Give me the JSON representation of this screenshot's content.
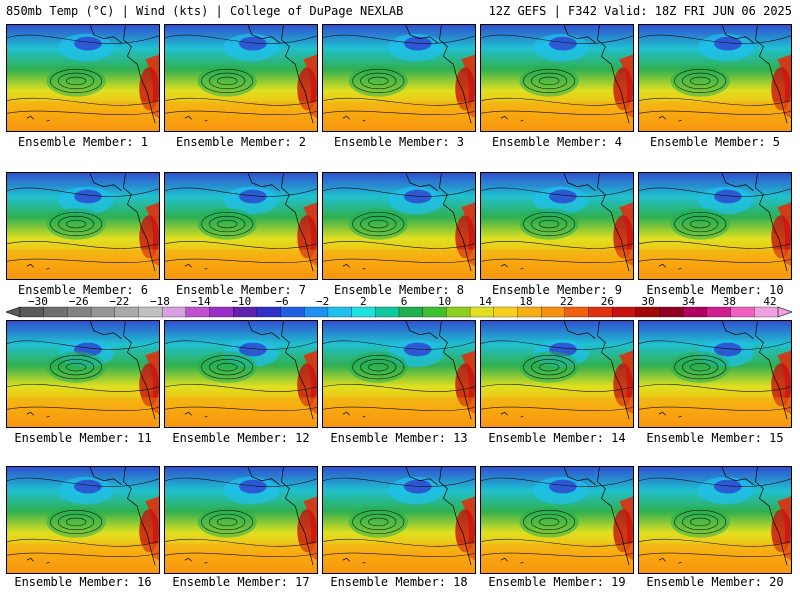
{
  "header": {
    "left": "850mb Temp (°C) | Wind (kts) | College of DuPage NEXLAB",
    "right": "12Z GEFS | F342 Valid: 18Z FRI JUN 06 2025"
  },
  "members": [
    {
      "label": "Ensemble Member: 1"
    },
    {
      "label": "Ensemble Member: 2"
    },
    {
      "label": "Ensemble Member: 3"
    },
    {
      "label": "Ensemble Member: 4"
    },
    {
      "label": "Ensemble Member: 5"
    },
    {
      "label": "Ensemble Member: 6"
    },
    {
      "label": "Ensemble Member: 7"
    },
    {
      "label": "Ensemble Member: 8"
    },
    {
      "label": "Ensemble Member: 9"
    },
    {
      "label": "Ensemble Member: 10"
    },
    {
      "label": "Ensemble Member: 11"
    },
    {
      "label": "Ensemble Member: 12"
    },
    {
      "label": "Ensemble Member: 13"
    },
    {
      "label": "Ensemble Member: 14"
    },
    {
      "label": "Ensemble Member: 15"
    },
    {
      "label": "Ensemble Member: 16"
    },
    {
      "label": "Ensemble Member: 17"
    },
    {
      "label": "Ensemble Member: 18"
    },
    {
      "label": "Ensemble Member: 19"
    },
    {
      "label": "Ensemble Member: 20"
    }
  ],
  "colorbar": {
    "ticks": [
      "−30",
      "−26",
      "−22",
      "−18",
      "−14",
      "−10",
      "−6",
      "−2",
      "2",
      "6",
      "10",
      "14",
      "18",
      "22",
      "26",
      "30",
      "34",
      "38",
      "42"
    ],
    "colors": [
      "#5a5a5a",
      "#6e6e6e",
      "#828282",
      "#969696",
      "#aaaaaa",
      "#c0c0c0",
      "#d8a0e0",
      "#c050d0",
      "#9a30c8",
      "#6020b0",
      "#3030c8",
      "#2060e0",
      "#2090f0",
      "#20c0f0",
      "#20e0e0",
      "#10c8a0",
      "#20b050",
      "#40c030",
      "#90d020",
      "#e0e020",
      "#f8d020",
      "#f8b010",
      "#f89010",
      "#f06010",
      "#e03010",
      "#c81010",
      "#a00808",
      "#900020",
      "#b00060",
      "#d02090",
      "#f060c0",
      "#f0a0e0"
    ]
  }
}
